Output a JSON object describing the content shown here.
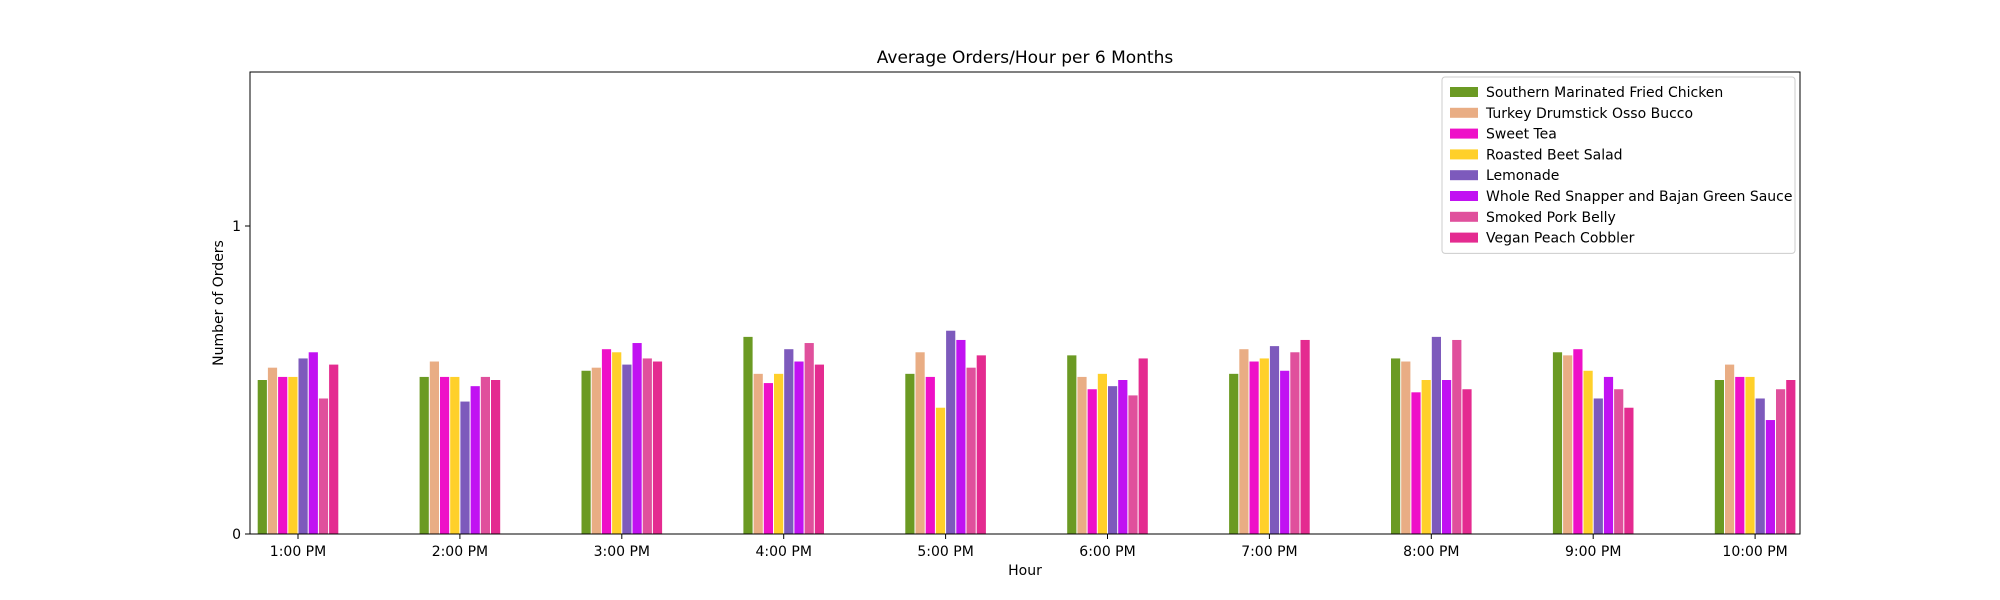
{
  "chart_data": {
    "type": "bar",
    "title": "Average Orders/Hour per 6 Months",
    "xlabel": "Hour",
    "ylabel": "Number of Orders",
    "ylim": [
      0,
      1.5
    ],
    "yticks": [
      0,
      1
    ],
    "grid": false,
    "legend_position": "top-right",
    "categories": [
      "1:00 PM",
      "2:00 PM",
      "3:00 PM",
      "4:00 PM",
      "5:00 PM",
      "6:00 PM",
      "7:00 PM",
      "8:00 PM",
      "9:00 PM",
      "10:00 PM"
    ],
    "series": [
      {
        "name": "Southern Marinated Fried Chicken",
        "color": "#6b9a23",
        "values": [
          0.5,
          0.51,
          0.53,
          0.64,
          0.52,
          0.58,
          0.52,
          0.57,
          0.59,
          0.5
        ]
      },
      {
        "name": "Turkey Drumstick Osso Bucco",
        "color": "#e9ad84",
        "values": [
          0.54,
          0.56,
          0.54,
          0.52,
          0.59,
          0.51,
          0.6,
          0.56,
          0.58,
          0.55
        ]
      },
      {
        "name": "Sweet Tea",
        "color": "#ee10c8",
        "values": [
          0.51,
          0.51,
          0.6,
          0.49,
          0.51,
          0.47,
          0.56,
          0.46,
          0.6,
          0.51
        ]
      },
      {
        "name": "Roasted Beet Salad",
        "color": "#ffd02a",
        "values": [
          0.51,
          0.51,
          0.59,
          0.52,
          0.41,
          0.52,
          0.57,
          0.5,
          0.53,
          0.51
        ]
      },
      {
        "name": "Lemonade",
        "color": "#7d5abc",
        "values": [
          0.57,
          0.43,
          0.55,
          0.6,
          0.66,
          0.48,
          0.61,
          0.64,
          0.44,
          0.44
        ]
      },
      {
        "name": "Whole Red Snapper and Bajan Green Sauce",
        "color": "#c112f2",
        "values": [
          0.59,
          0.48,
          0.62,
          0.56,
          0.63,
          0.5,
          0.53,
          0.5,
          0.51,
          0.37
        ]
      },
      {
        "name": "Smoked Pork Belly",
        "color": "#e0509c",
        "values": [
          0.44,
          0.51,
          0.57,
          0.62,
          0.54,
          0.45,
          0.59,
          0.63,
          0.47,
          0.47
        ]
      },
      {
        "name": "Vegan Peach Cobbler",
        "color": "#e42b90",
        "values": [
          0.55,
          0.5,
          0.56,
          0.55,
          0.58,
          0.57,
          0.63,
          0.47,
          0.41,
          0.5
        ]
      }
    ]
  }
}
